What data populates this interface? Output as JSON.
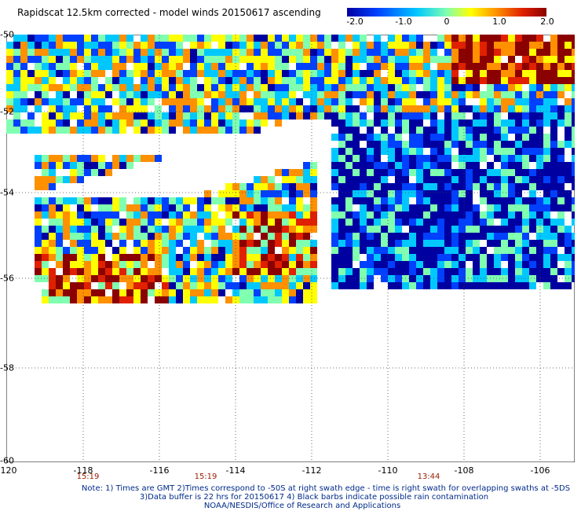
{
  "title": "Rapidscat 12.5km corrected - model winds 20150617 ascending",
  "colorbar": {
    "ticks": [
      "-2.0",
      "-1.0",
      "0",
      "1.0",
      "2.0"
    ],
    "colors": [
      "#0000a0",
      "#0040ff",
      "#00c8ff",
      "#80ffb0",
      "#ffff00",
      "#ff9000",
      "#e02000",
      "#8b0000"
    ]
  },
  "map": {
    "lat_ticks": [
      "-50",
      "-52",
      "-54",
      "-56",
      "-58",
      "-60"
    ],
    "lon_ticks": [
      "-120",
      "-118",
      "-116",
      "-114",
      "-112",
      "-110",
      "-108",
      "-106"
    ],
    "time_labels": [
      "15:19",
      "15:19",
      "13:44"
    ],
    "lon_range": [
      -120,
      -105.1
    ],
    "lat_range": [
      -60,
      -50
    ],
    "grid": true
  },
  "notes": [
    "Note: 1) Times are GMT 2)Times correspond to -50S at right swath edge - time is right swath for overlapping swaths at -5DS",
    "3)Data buffer is 22 hrs for 20150617 4) Black barbs indicate possible rain contamination",
    "NOAA/NESDIS/Office of Research and Applications"
  ]
}
